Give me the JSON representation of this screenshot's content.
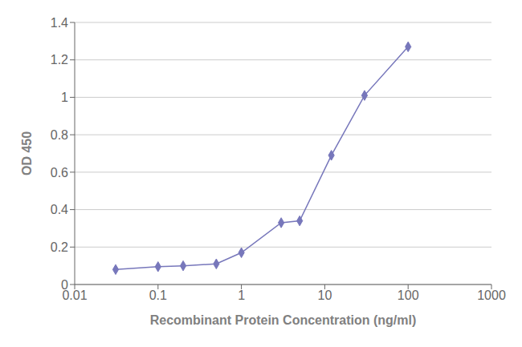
{
  "chart_data": {
    "type": "line",
    "x": [
      0.031,
      0.1,
      0.2,
      0.5,
      1.0,
      3.0,
      5.0,
      12.0,
      30.0,
      100.0
    ],
    "values": [
      0.08,
      0.095,
      0.1,
      0.11,
      0.17,
      0.33,
      0.34,
      0.69,
      1.01,
      1.27
    ],
    "color": "#7777bb",
    "marker": "diamond",
    "xlabel": "Recombinant Protein Concentration (ng/ml)",
    "ylabel": "OD 450",
    "log": "x",
    "xlim": [
      0.01,
      1000
    ],
    "ylim": [
      0,
      1.4
    ],
    "xticks": [
      0.01,
      0.1,
      1,
      10,
      100,
      1000
    ],
    "yticks": [
      0,
      0.2,
      0.4,
      0.6,
      0.8,
      1.0,
      1.2,
      1.4
    ],
    "grid": "y"
  }
}
